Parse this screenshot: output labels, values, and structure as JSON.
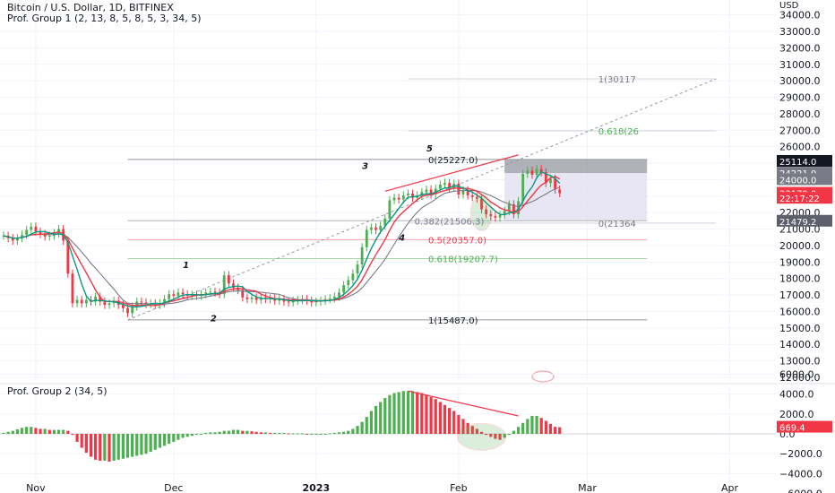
{
  "header": {
    "title": "Bitcoin / U.S. Dollar, 1D, BITFINEX",
    "indicator1": "Prof. Group 1 (2, 13, 8, 5, 8, 5, 3, 34, 5)",
    "indicator2": "Prof. Group 2 (34, 5)",
    "currency": "USD"
  },
  "chart_data": [
    {
      "type": "candlestick",
      "title": "Bitcoin / U.S. Dollar, 1D, BITFINEX",
      "ylim": [
        11500,
        35000
      ],
      "xlim": [
        0,
        124
      ],
      "y_ticks": [
        12000,
        13000,
        14000,
        15000,
        16000,
        17000,
        18000,
        19000,
        20000,
        21000,
        22000,
        23000,
        24000,
        25000,
        26000,
        27000,
        28000,
        29000,
        30000,
        31000,
        32000,
        33000,
        34000
      ],
      "y_tick_labels": [
        "12000.0",
        "13000.0",
        "14000.0",
        "15000.0",
        "16000.0",
        "17000.0",
        "18000.0",
        "19000.0",
        "20000.0",
        "21000.0",
        "22000.0",
        "23000.0",
        "24000.0",
        "25000.0",
        "26000.0",
        "27000.0",
        "28000.0",
        "29000.0",
        "30000.0",
        "31000.0",
        "32000.0",
        "33000.0",
        "34000.0"
      ],
      "x_ticks": [
        {
          "t": 7,
          "label": "Nov"
        },
        {
          "t": 37,
          "label": "Dec"
        },
        {
          "t": 68,
          "label": "2023"
        },
        {
          "t": 99,
          "label": "Feb"
        },
        {
          "t": 127,
          "label": "Mar"
        },
        {
          "t": 158,
          "label": "Apr"
        }
      ],
      "price_close": [
        20600,
        20450,
        20300,
        20450,
        20650,
        20950,
        21150,
        20850,
        20700,
        20550,
        20600,
        20750,
        21000,
        20300,
        18300,
        16500,
        16700,
        16500,
        16700,
        16600,
        16900,
        16600,
        16400,
        16500,
        16650,
        16400,
        16200,
        15900,
        16300,
        16600,
        16550,
        16450,
        16500,
        16400,
        16500,
        16750,
        17050,
        16950,
        17150,
        17050,
        16950,
        17000,
        16950,
        17050,
        17150,
        17200,
        17150,
        17050,
        18200,
        17700,
        17450,
        17300,
        16850,
        16750,
        16850,
        16700,
        16850,
        16750,
        16800,
        16650,
        16750,
        16600,
        16550,
        16650,
        16700,
        16750,
        16650,
        16550,
        16600,
        16650,
        16750,
        16800,
        16900,
        17150,
        17600,
        17900,
        18300,
        18850,
        19900,
        20950,
        21100,
        20950,
        21200,
        21650,
        22750,
        22900,
        22800,
        23050,
        23150,
        22900,
        23050,
        23250,
        23400,
        23100,
        23450,
        23700,
        23800,
        23500,
        23750,
        23100,
        23350,
        23050,
        22950,
        22850,
        22200,
        21900,
        21800,
        21700,
        21850,
        22100,
        22500,
        21900,
        22700,
        24350,
        24550,
        24300,
        24650,
        24450,
        23800,
        24050,
        23400,
        23179
      ],
      "labels": [
        {
          "text": "1(30117",
          "t": 129,
          "price": 30117,
          "color": "#787b86"
        },
        {
          "text": "0.618(26",
          "t": 129,
          "price": 26960,
          "color": "#4caf50"
        },
        {
          "text": "0(25227.0)",
          "t": 92,
          "price": 25227,
          "color": "#131722"
        },
        {
          "text": "0.382(21506.3)",
          "t": 89,
          "price": 21506.3,
          "color": "#787b86"
        },
        {
          "text": "0(21364",
          "t": 129,
          "price": 21364,
          "color": "#787b86"
        },
        {
          "text": "0.5(20357.0)",
          "t": 92,
          "price": 20357,
          "color": "#f23645"
        },
        {
          "text": "0.618(19207.7)",
          "t": 92,
          "price": 19207.7,
          "color": "#4caf50"
        },
        {
          "text": "1(15487.0)",
          "t": 92,
          "price": 15487,
          "color": "#131722"
        }
      ],
      "wave_labels": [
        {
          "text": "1",
          "t": 39,
          "price": 18650
        },
        {
          "text": "2",
          "t": 45,
          "price": 15400
        },
        {
          "text": "3",
          "t": 78,
          "price": 24650
        },
        {
          "text": "4",
          "t": 86,
          "price": 20300
        },
        {
          "text": "5",
          "t": 92,
          "price": 25700
        }
      ],
      "price_axis_badges": [
        {
          "text": "25114.0",
          "price": 25114,
          "bg": "#131722",
          "fg": "#ffffff"
        },
        {
          "text": "24221.0",
          "price": 24400,
          "bg": "#787b86",
          "fg": "#ffffff"
        },
        {
          "text": "24000.0",
          "price": 24000,
          "bg": "#787b86",
          "fg": "#ffffff"
        },
        {
          "text": "23179.0",
          "price": 23179,
          "bg": "#f23645",
          "fg": "#ffffff"
        },
        {
          "text": "22:17:22",
          "price": 22870,
          "bg": "#f23645",
          "fg": "#ffffff"
        },
        {
          "text": "21479.2",
          "price": 21479.2,
          "bg": "#5d606b",
          "fg": "#ffffff"
        }
      ]
    },
    {
      "type": "bar",
      "title": "Prof. Group 2 (34, 5)",
      "ylim": [
        -6200,
        7000
      ],
      "y_ticks": [
        6000,
        4000,
        2000,
        0,
        -2000,
        -4000,
        -6000
      ],
      "y_tick_labels": [
        "6000.0",
        "4000.0",
        "2000.0",
        "0.0",
        "−2000.0",
        "−4000.0",
        "−6000.0"
      ],
      "values": [
        100,
        200,
        300,
        450,
        600,
        700,
        700,
        600,
        500,
        500,
        400,
        400,
        400,
        400,
        300,
        -100,
        -800,
        -1400,
        -1900,
        -2300,
        -2600,
        -2700,
        -2700,
        -2800,
        -2700,
        -2600,
        -2500,
        -2400,
        -2300,
        -2200,
        -2100,
        -2000,
        -1800,
        -1600,
        -1400,
        -1200,
        -1000,
        -800,
        -600,
        -400,
        -300,
        -200,
        -100,
        0,
        100,
        150,
        150,
        200,
        300,
        300,
        400,
        400,
        300,
        300,
        250,
        200,
        150,
        150,
        100,
        100,
        100,
        100,
        50,
        50,
        50,
        50,
        0,
        0,
        0,
        0,
        0,
        50,
        100,
        150,
        200,
        300,
        500,
        800,
        1200,
        1700,
        2300,
        2800,
        3200,
        3600,
        3900,
        4100,
        4200,
        4300,
        4300,
        4300,
        4200,
        4100,
        3900,
        3700,
        3500,
        3200,
        2900,
        2600,
        2300,
        1900,
        1500,
        1100,
        800,
        500,
        200,
        -100,
        -300,
        -500,
        -600,
        -400,
        -100,
        300,
        700,
        1100,
        1500,
        1800,
        1800,
        1600,
        1300,
        1000,
        700,
        669.4
      ],
      "label_value": "669.4",
      "label_color": "#f23645"
    }
  ],
  "styles": {
    "bg": "#ffffff",
    "up": "#4caf50",
    "down": "#f23645",
    "grid": "#f0f3fa",
    "text": "#131722",
    "muted": "#787b86",
    "ma_fast": "#f23645",
    "ma_mid": "#089981",
    "ma_slow": "#787b86",
    "fib_box": "#e1e0ef",
    "position_box": "#9598a1"
  }
}
